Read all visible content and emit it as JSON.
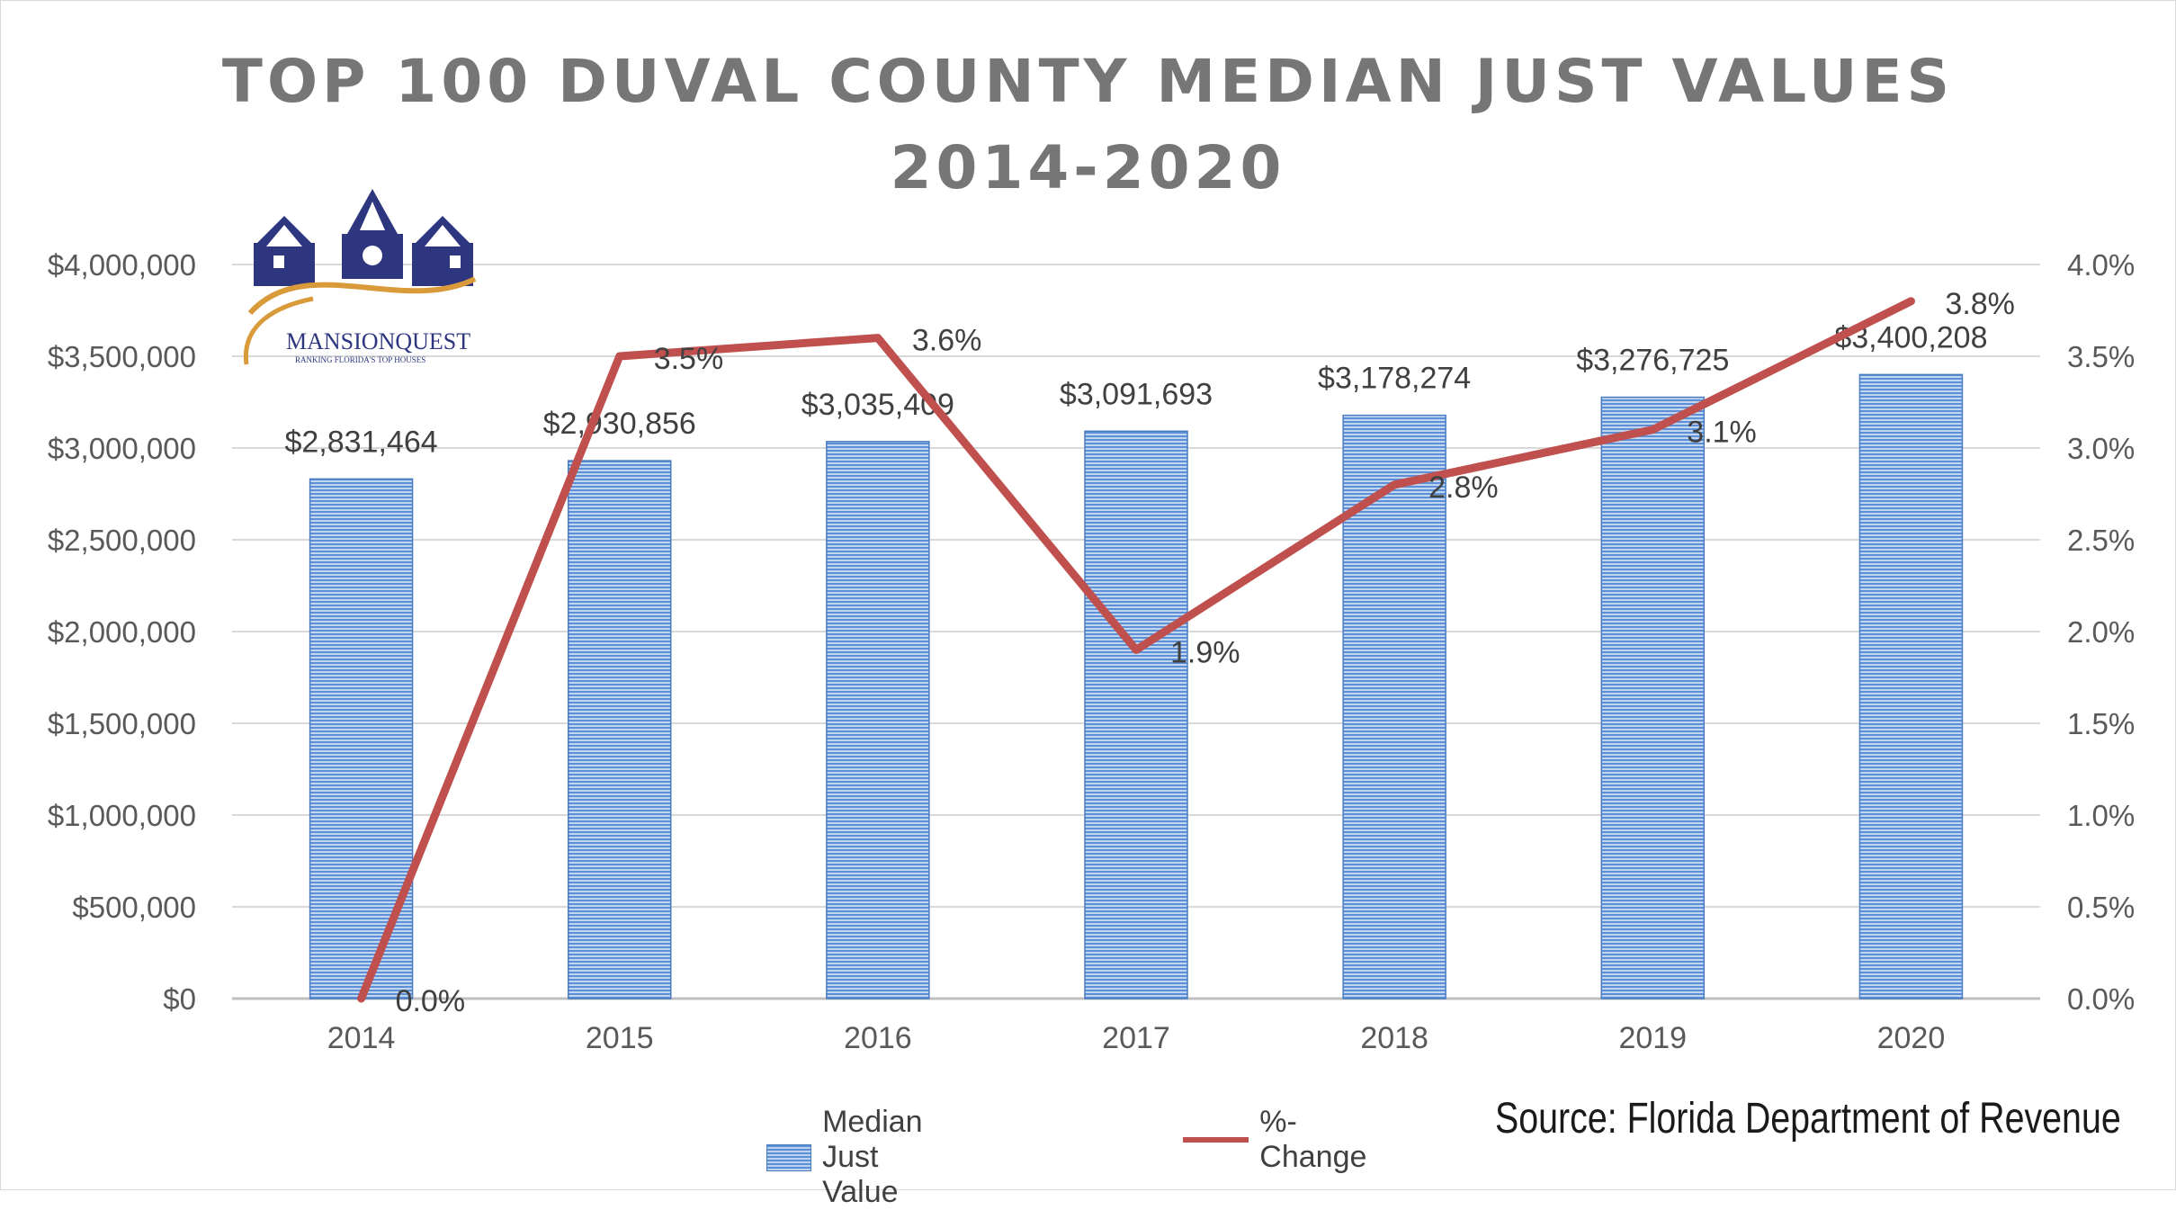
{
  "chart_data": {
    "type": "bar",
    "title_line1": "TOP 100 DUVAL COUNTY MEDIAN JUST VALUES",
    "title_line2": "2014-2020",
    "categories": [
      "2014",
      "2015",
      "2016",
      "2017",
      "2018",
      "2019",
      "2020"
    ],
    "series": [
      {
        "name": "Median Just Value",
        "type": "bar",
        "axis": "left",
        "values": [
          2831464,
          2930856,
          3035409,
          3091693,
          3178274,
          3276725,
          3400208
        ],
        "labels": [
          "$2,831,464",
          "$2,930,856",
          "$3,035,409",
          "$3,091,693",
          "$3,178,274",
          "$3,276,725",
          "$3,400,208"
        ],
        "color": "#5b8fd6"
      },
      {
        "name": "%-Change",
        "type": "line",
        "axis": "right",
        "values": [
          0.0,
          3.5,
          3.6,
          1.9,
          2.8,
          3.1,
          3.8
        ],
        "labels": [
          "0.0%",
          "3.5%",
          "3.6%",
          "1.9%",
          "2.8%",
          "3.1%",
          "3.8%"
        ],
        "color": "#c0504d"
      }
    ],
    "y_left": {
      "ylim": [
        0,
        4000000
      ],
      "ticks": [
        "$0",
        "$500,000",
        "$1,000,000",
        "$1,500,000",
        "$2,000,000",
        "$2,500,000",
        "$3,000,000",
        "$3,500,000",
        "$4,000,000"
      ]
    },
    "y_right": {
      "ylim": [
        0,
        4.0
      ],
      "ticks": [
        "0.0%",
        "0.5%",
        "1.0%",
        "1.5%",
        "2.0%",
        "2.5%",
        "3.0%",
        "3.5%",
        "4.0%"
      ]
    },
    "grid": true,
    "legend_position": "bottom"
  },
  "source": "Source: Florida Department of Revenue",
  "logo": {
    "name": "MANSIONQUEST",
    "tagline": "RANKING FLORIDA'S TOP HOUSES",
    "colors": {
      "navy": "#2e3680",
      "gold": "#d99a3a"
    }
  }
}
